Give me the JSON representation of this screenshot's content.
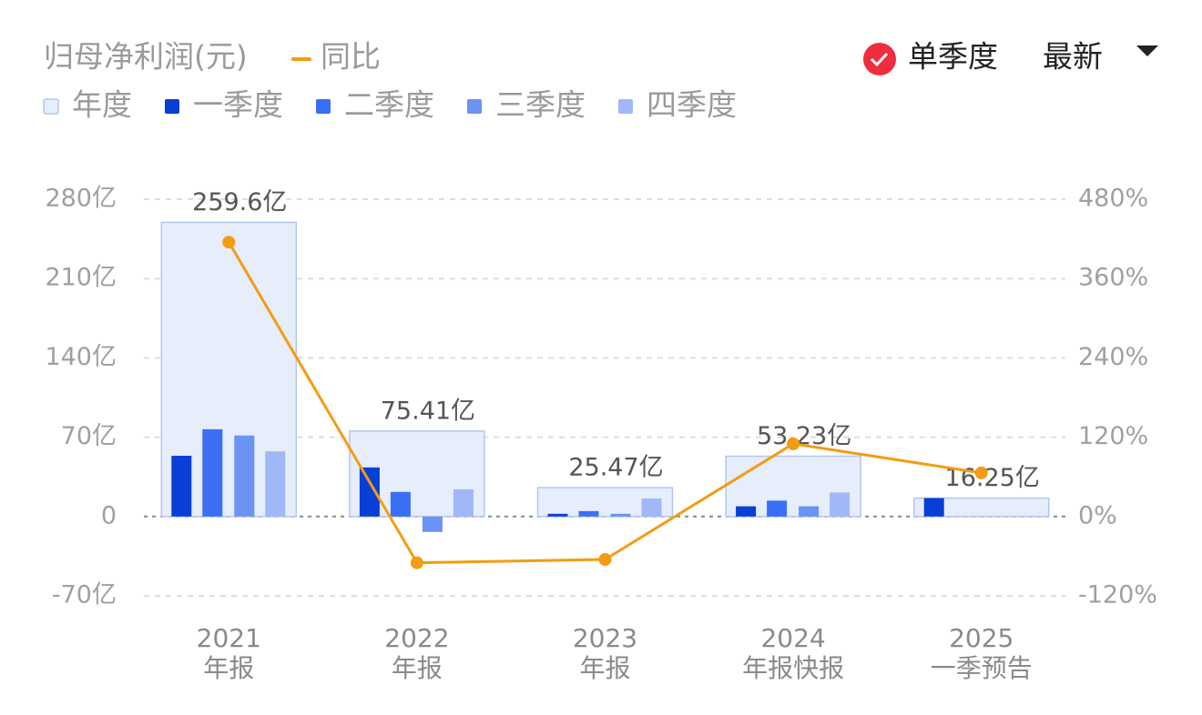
{
  "chart_data": {
    "type": "bar",
    "title": "归母净利润(元)",
    "controls": {
      "single_quarter": "单季度",
      "sort": "最新"
    },
    "categories": [
      "2021",
      "2022",
      "2023",
      "2024",
      "2025"
    ],
    "category_periods": [
      "年报",
      "年报",
      "年报",
      "年报快报",
      "一季预告"
    ],
    "ylim": [
      -70,
      280
    ],
    "yticks": [
      {
        "value": -70,
        "label": "-70亿"
      },
      0,
      {
        "value": 70,
        "label": "70亿"
      },
      {
        "value": 140,
        "label": "140亿"
      },
      {
        "value": 210,
        "label": "210亿"
      },
      {
        "value": 280,
        "label": "280亿"
      }
    ],
    "y2lim": [
      -120,
      480
    ],
    "y2ticks": [
      {
        "value": -120,
        "label": "-120%"
      },
      {
        "value": 0,
        "label": "0%"
      },
      {
        "value": 120,
        "label": "120%"
      },
      {
        "value": 240,
        "label": "240%"
      },
      {
        "value": 360,
        "label": "360%"
      },
      {
        "value": 480,
        "label": "480%"
      }
    ],
    "grid": true,
    "series": [
      {
        "name": "年度",
        "role": "annual",
        "color": "#e6edfb",
        "stroke": "#b3c6f2",
        "values": [
          259.6,
          75.41,
          25.47,
          53.23,
          16.25
        ],
        "value_labels": [
          "259.6亿",
          "75.41亿",
          "25.47亿",
          "53.23亿",
          "16.25亿"
        ]
      },
      {
        "name": "一季度",
        "role": "quarter",
        "color": "#0a3fd6",
        "values": [
          53.6,
          43.3,
          2.4,
          9.0,
          16.25
        ]
      },
      {
        "name": "二季度",
        "role": "quarter",
        "color": "#3a6ff5",
        "values": [
          77.0,
          21.7,
          4.8,
          14.0,
          null
        ]
      },
      {
        "name": "三季度",
        "role": "quarter",
        "color": "#6a93f5",
        "values": [
          71.5,
          -13.6,
          2.4,
          9.0,
          null
        ]
      },
      {
        "name": "四季度",
        "role": "quarter",
        "color": "#a0b8f8",
        "values": [
          57.5,
          24.0,
          15.9,
          21.2,
          null
        ]
      },
      {
        "name": "同比",
        "role": "line",
        "axis": "y2",
        "color": "#f39c12",
        "values": [
          415,
          -70,
          -65,
          110,
          66
        ]
      }
    ]
  }
}
